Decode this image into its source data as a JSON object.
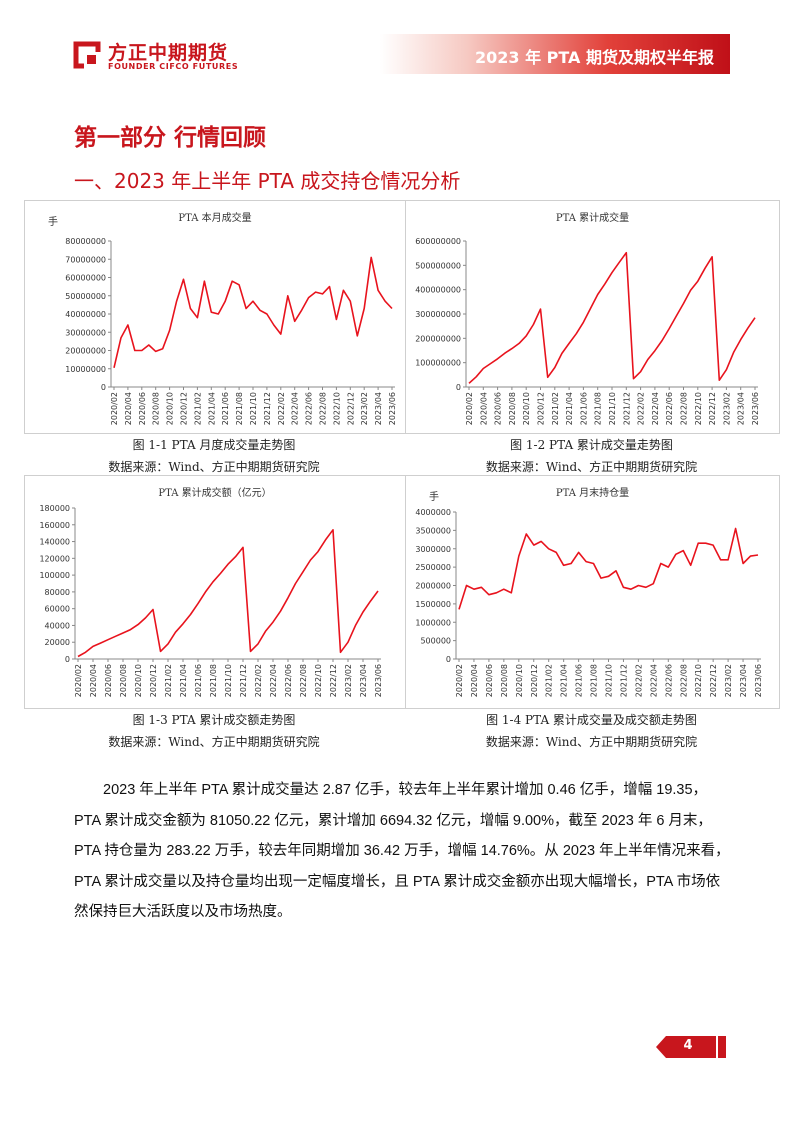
{
  "header": {
    "logo_cn": "方正中期期货",
    "logo_en": "FOUNDER CIFCO FUTURES",
    "report_title": "2023 年 PTA 期货及期权半年报"
  },
  "part_title": "第一部分 行情回顾",
  "section_title": "一、2023 年上半年 PTA 成交持仓情况分析",
  "colors": {
    "brand": "#c8161d",
    "series": "#e8131d"
  },
  "x_labels": [
    "2020/02",
    "2020/04",
    "2020/06",
    "2020/08",
    "2020/10",
    "2020/12",
    "2021/02",
    "2021/04",
    "2021/06",
    "2021/08",
    "2021/10",
    "2021/12",
    "2022/02",
    "2022/04",
    "2022/06",
    "2022/08",
    "2022/10",
    "2022/12",
    "2023/02",
    "2023/04",
    "2023/06"
  ],
  "chart_data": [
    {
      "type": "line",
      "title": "PTA 本月成交量",
      "unit": "手",
      "ylim": [
        0,
        80000000
      ],
      "yticks": [
        0,
        10000000,
        20000000,
        30000000,
        40000000,
        50000000,
        60000000,
        70000000,
        80000000
      ],
      "values": [
        10500000,
        27000000,
        34000000,
        20000000,
        20000000,
        23000000,
        19500000,
        21000000,
        31000000,
        47000000,
        59000000,
        43000000,
        38000000,
        58000000,
        41000000,
        40000000,
        47000000,
        58000000,
        56000000,
        43000000,
        47000000,
        42000000,
        40000000,
        34000000,
        29000000,
        50000000,
        36000000,
        42000000,
        49000000,
        52000000,
        51000000,
        55000000,
        37000000,
        53000000,
        47000000,
        28000000,
        43000000,
        71000000,
        53000000,
        47000000,
        43000000
      ]
    },
    {
      "type": "line",
      "title": "PTA 累计成交量",
      "unit": "",
      "ylim": [
        0,
        600000000
      ],
      "yticks": [
        0,
        100000000,
        200000000,
        300000000,
        400000000,
        500000000,
        600000000
      ],
      "values": [
        15000000,
        42000000,
        76000000,
        96000000,
        116000000,
        139000000,
        158000000,
        179000000,
        210000000,
        257000000,
        320000000,
        40000000,
        80000000,
        138000000,
        179000000,
        219000000,
        266000000,
        324000000,
        380000000,
        423000000,
        470000000,
        512000000,
        552000000,
        34000000,
        63000000,
        113000000,
        149000000,
        191000000,
        240000000,
        292000000,
        343000000,
        398000000,
        435000000,
        488000000,
        535000000,
        28000000,
        71000000,
        142000000,
        195000000,
        242000000,
        285000000
      ]
    },
    {
      "type": "line",
      "title": "PTA 累计成交额（亿元）",
      "unit": "",
      "ylim": [
        0,
        180000
      ],
      "yticks": [
        0,
        20000,
        40000,
        60000,
        80000,
        100000,
        120000,
        140000,
        160000,
        180000
      ],
      "values": [
        3000,
        8000,
        15000,
        19000,
        23000,
        27000,
        31000,
        35000,
        41000,
        49000,
        59000,
        9000,
        18000,
        32000,
        42000,
        53000,
        66000,
        80000,
        92000,
        102000,
        113000,
        122000,
        133000,
        9000,
        18000,
        33000,
        44000,
        57000,
        73000,
        90000,
        104000,
        118000,
        128000,
        142000,
        154000,
        8000,
        20000,
        40000,
        56000,
        69000,
        81000
      ]
    },
    {
      "type": "line",
      "title": "PTA 月末持仓量",
      "unit": "手",
      "ylim": [
        0,
        4000000
      ],
      "yticks": [
        0,
        500000,
        1000000,
        1500000,
        2000000,
        2500000,
        3000000,
        3500000,
        4000000
      ],
      "values": [
        1350000,
        2000000,
        1900000,
        1950000,
        1750000,
        1800000,
        1900000,
        1800000,
        2800000,
        3400000,
        3100000,
        3200000,
        3000000,
        2900000,
        2550000,
        2600000,
        2900000,
        2650000,
        2600000,
        2200000,
        2250000,
        2400000,
        1950000,
        1900000,
        2000000,
        1950000,
        2050000,
        2600000,
        2500000,
        2850000,
        2950000,
        2550000,
        3150000,
        3150000,
        3100000,
        2700000,
        2700000,
        3550000,
        2600000,
        2800000,
        2830000
      ]
    }
  ],
  "captions": [
    {
      "figure": "图 1-1 PTA 月度成交量走势图",
      "source": "数据来源：Wind、方正中期期货研究院"
    },
    {
      "figure": "图 1-2 PTA 累计成交量走势图",
      "source": "数据来源：Wind、方正中期期货研究院"
    },
    {
      "figure": "图 1-3 PTA 累计成交额走势图",
      "source": "数据来源：Wind、方正中期期货研究院"
    },
    {
      "figure": "图 1-4 PTA 累计成交量及成交额走势图",
      "source": "数据来源：Wind、方正中期期货研究院"
    }
  ],
  "body_text": "2023 年上半年 PTA 累计成交量达 2.87 亿手，较去年上半年累计增加 0.46 亿手，增幅 19.35，PTA 累计成交金额为 81050.22 亿元，累计增加 6694.32 亿元，增幅 9.00%，截至 2023 年 6 月末，PTA 持仓量为 283.22 万手，较去年同期增加 36.42 万手，增幅 14.76%。从 2023 年上半年情况来看，PTA 累计成交量以及持仓量均出现一定幅度增长，且 PTA 累计成交金额亦出现大幅增长，PTA 市场依然保持巨大活跃度以及市场热度。",
  "page_number": "4"
}
